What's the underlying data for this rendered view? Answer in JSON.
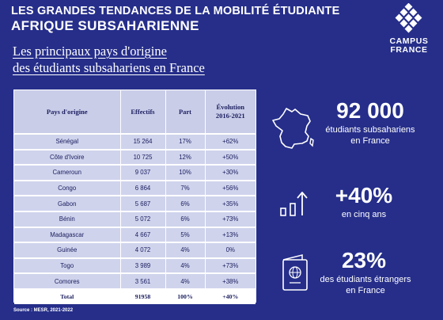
{
  "header": {
    "line1": "LES GRANDES TENDANCES DE LA MOBILITÉ ÉTUDIANTE",
    "line2": "AFRIQUE SUBSAHARIENNE"
  },
  "logo": {
    "line1": "CAMPUS",
    "line2": "FRANCE"
  },
  "subtitle": {
    "line1": "Les principaux pays d'origine",
    "line2": "des étudiants subsahariens en France"
  },
  "table": {
    "headers": [
      "Pays d'origine",
      "Effectifs",
      "Part",
      "Évolution 2016-2021"
    ],
    "rows": [
      [
        "Sénégal",
        "15 264",
        "17%",
        "+62%"
      ],
      [
        "Côte d'Ivoire",
        "10 725",
        "12%",
        "+50%"
      ],
      [
        "Cameroun",
        "9 037",
        "10%",
        "+30%"
      ],
      [
        "Congo",
        "6 864",
        "7%",
        "+56%"
      ],
      [
        "Gabon",
        "5 687",
        "6%",
        "+35%"
      ],
      [
        "Bénin",
        "5 072",
        "6%",
        "+73%"
      ],
      [
        "Madagascar",
        "4 667",
        "5%",
        "+13%"
      ],
      [
        "Guinée",
        "4 072",
        "4%",
        "0%"
      ],
      [
        "Togo",
        "3 989",
        "4%",
        "+73%"
      ],
      [
        "Comores",
        "3 561",
        "4%",
        "+38%"
      ],
      [
        "Total",
        "91958",
        "100%",
        "+40%"
      ]
    ]
  },
  "source": "Source : MESR, 2021-2022",
  "stats": [
    {
      "value": "92 000",
      "text_line1": "étudiants subsahariens",
      "text_line2": "en France",
      "icon": "france-map-icon"
    },
    {
      "value": "+40%",
      "text_line1": "en cinq ans",
      "text_line2": "",
      "icon": "growth-bars-icon"
    },
    {
      "value": "23%",
      "text_line1": "des étudiants  étrangers",
      "text_line2": "en France",
      "icon": "passport-icon"
    }
  ],
  "colors": {
    "background": "#262e8a",
    "table_header": "#c9cde8",
    "table_cell": "#cfd3ec",
    "table_text": "#1d2060"
  }
}
